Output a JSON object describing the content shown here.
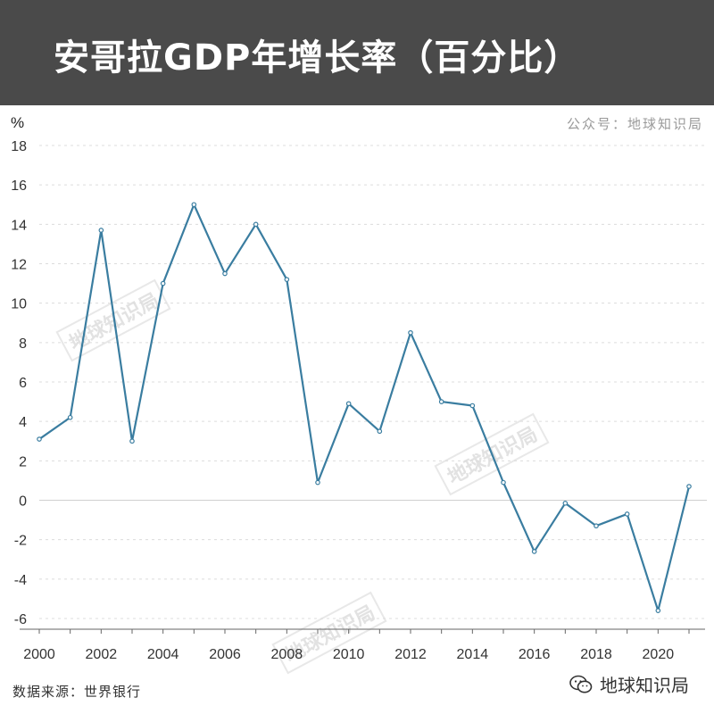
{
  "header": {
    "title": "安哥拉GDP年增长率（百分比）",
    "bg_color": "#4a4a4a"
  },
  "publisher": "公众号：地球知识局",
  "source": "数据来源：世界银行",
  "brand": {
    "label": "地球知识局",
    "icon": "wechat-icon"
  },
  "watermark": "地球知识局",
  "chart_data": {
    "type": "line",
    "title": "安哥拉GDP年增长率（百分比）",
    "ylabel": "%",
    "xlabel": "",
    "x": [
      2000,
      2001,
      2002,
      2003,
      2004,
      2005,
      2006,
      2007,
      2008,
      2009,
      2010,
      2011,
      2012,
      2013,
      2014,
      2015,
      2016,
      2017,
      2018,
      2019,
      2020,
      2021
    ],
    "series": [
      {
        "values": [
          3.1,
          4.2,
          13.7,
          3.0,
          11.0,
          15.0,
          11.5,
          14.0,
          11.2,
          0.9,
          4.9,
          3.5,
          8.5,
          5.0,
          4.8,
          0.9,
          -2.6,
          -0.15,
          -1.3,
          -0.7,
          -5.6,
          0.7
        ],
        "color": "#3a7da0"
      }
    ],
    "xlim": [
      2000,
      2021
    ],
    "ylim": [
      -6,
      18
    ],
    "xticks": [
      "2000",
      "2002",
      "2004",
      "2006",
      "2008",
      "2010",
      "2012",
      "2014",
      "2016",
      "2018",
      "2020"
    ],
    "yticks": [
      "18",
      "16",
      "14",
      "12",
      "10",
      "8",
      "6",
      "4",
      "2",
      "0",
      "-2",
      "-4",
      "-6"
    ],
    "grid": true
  }
}
